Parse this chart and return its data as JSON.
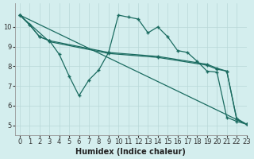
{
  "xlabel": "Humidex (Indice chaleur)",
  "background_color": "#d4eeee",
  "line_color": "#1a6b60",
  "xlim": [
    -0.5,
    23
  ],
  "ylim": [
    4.5,
    11.2
  ],
  "yticks": [
    5,
    6,
    7,
    8,
    9,
    10
  ],
  "xticks": [
    0,
    1,
    2,
    3,
    4,
    5,
    6,
    7,
    8,
    9,
    10,
    11,
    12,
    13,
    14,
    15,
    16,
    17,
    18,
    19,
    20,
    21,
    22,
    23
  ],
  "grid_color": "#b8d8d8",
  "tick_label_fontsize": 6,
  "xlabel_fontsize": 7,
  "series_zigzag_x": [
    0,
    1,
    2,
    3,
    4,
    5,
    6,
    7,
    8,
    9,
    10,
    11,
    12,
    13,
    14,
    15,
    16,
    17,
    18,
    19,
    20,
    21,
    22,
    23
  ],
  "series_zigzag_y": [
    10.6,
    10.1,
    9.5,
    9.3,
    8.6,
    7.5,
    6.5,
    7.3,
    7.8,
    8.7,
    10.6,
    10.5,
    10.4,
    9.7,
    10.0,
    9.5,
    8.8,
    8.7,
    8.25,
    7.75,
    7.7,
    5.4,
    5.2,
    5.05
  ],
  "series_upper_trend_x": [
    0,
    1,
    2,
    3,
    9,
    14,
    19,
    20,
    21,
    22,
    23
  ],
  "series_upper_trend_y": [
    10.6,
    10.1,
    9.5,
    9.3,
    8.7,
    8.5,
    8.1,
    7.9,
    7.75,
    5.35,
    5.05
  ],
  "series_mid_trend_x": [
    0,
    3,
    9,
    14,
    19,
    20,
    21,
    22,
    23
  ],
  "series_mid_trend_y": [
    10.6,
    9.25,
    8.65,
    8.45,
    8.05,
    7.85,
    7.75,
    5.3,
    5.05
  ],
  "series_lower_trend_x": [
    0,
    23
  ],
  "series_lower_trend_y": [
    10.6,
    5.05
  ]
}
